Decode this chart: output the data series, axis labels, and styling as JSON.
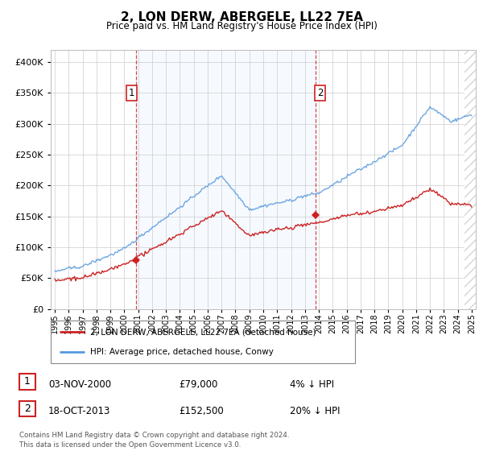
{
  "title": "2, LON DERW, ABERGELE, LL22 7EA",
  "subtitle": "Price paid vs. HM Land Registry's House Price Index (HPI)",
  "ylim": [
    0,
    420000
  ],
  "yticks": [
    0,
    50000,
    100000,
    150000,
    200000,
    250000,
    300000,
    350000,
    400000
  ],
  "xlim_start": 1994.7,
  "xlim_end": 2025.3,
  "hpi_color": "#5599dd",
  "price_color": "#cc2222",
  "vline_color": "#cc2222",
  "shade_color": "#ddeeff",
  "grid_color": "#cccccc",
  "background_color": "#ffffff",
  "sale1_x": 2000.84,
  "sale1_y": 79000,
  "sale1_label": "1",
  "sale2_x": 2013.79,
  "sale2_y": 152500,
  "sale2_label": "2",
  "legend_entry1": "2, LON DERW, ABERGELE, LL22 7EA (detached house)",
  "legend_entry2": "HPI: Average price, detached house, Conwy",
  "table_row1_date": "03-NOV-2000",
  "table_row1_price": "£79,000",
  "table_row1_hpi": "4% ↓ HPI",
  "table_row2_date": "18-OCT-2013",
  "table_row2_price": "£152,500",
  "table_row2_hpi": "20% ↓ HPI",
  "footer": "Contains HM Land Registry data © Crown copyright and database right 2024.\nThis data is licensed under the Open Government Licence v3.0.",
  "xtick_years": [
    1995,
    1996,
    1997,
    1998,
    1999,
    2000,
    2001,
    2002,
    2003,
    2004,
    2005,
    2006,
    2007,
    2008,
    2009,
    2010,
    2011,
    2012,
    2013,
    2014,
    2015,
    2016,
    2017,
    2018,
    2019,
    2020,
    2021,
    2022,
    2023,
    2024,
    2025
  ]
}
